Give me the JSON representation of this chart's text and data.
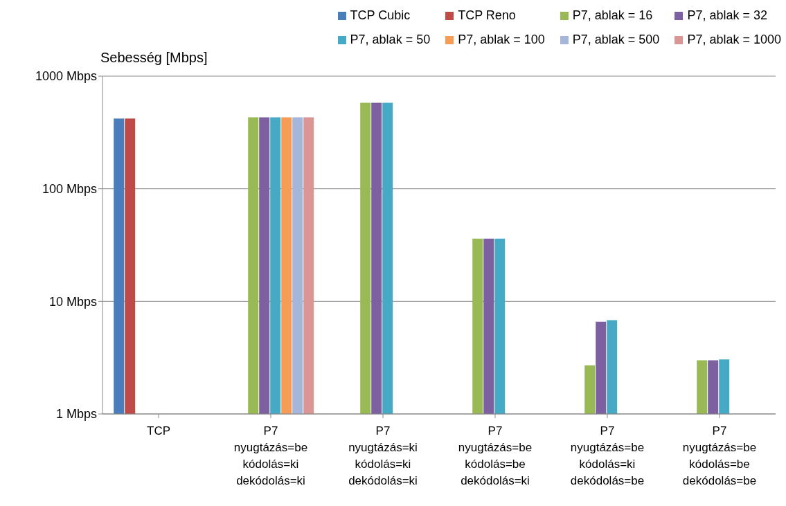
{
  "chart_data": {
    "type": "bar",
    "ylabel": "Sebesség [Mbps]",
    "categories": [
      "TCP",
      "P7\nnyugtázás=be\nkódolás=ki\ndekódolás=ki",
      "P7\nnyugtázás=ki\nkódolás=ki\ndekódolás=ki",
      "P7\nnyugtázás=be\nkódolás=be\ndekódolás=ki",
      "P7\nnyugtázás=be\nkódolás=ki\ndekódolás=be",
      "P7\nnyugtázás=be\nkódolás=be\ndekódolás=be"
    ],
    "series": [
      {
        "name": "TCP Cubic",
        "color": "#4a7ebb",
        "values": [
          420,
          null,
          null,
          null,
          null,
          null
        ]
      },
      {
        "name": "TCP Reno",
        "color": "#be4b48",
        "values": [
          420,
          null,
          null,
          null,
          null,
          null
        ]
      },
      {
        "name": "P7, ablak = 16",
        "color": "#98b954",
        "values": [
          null,
          430,
          580,
          36,
          2.7,
          3.0
        ]
      },
      {
        "name": "P7, ablak = 32",
        "color": "#7d60a0",
        "values": [
          null,
          430,
          580,
          36,
          6.6,
          3.0
        ]
      },
      {
        "name": "P7, ablak = 50",
        "color": "#46aac5",
        "values": [
          null,
          430,
          580,
          36,
          6.8,
          3.05
        ]
      },
      {
        "name": "P7, ablak = 100",
        "color": "#f59d56",
        "values": [
          null,
          430,
          null,
          null,
          null,
          null
        ]
      },
      {
        "name": "P7, ablak = 500",
        "color": "#a5b6da",
        "values": [
          null,
          430,
          null,
          null,
          null,
          null
        ]
      },
      {
        "name": "P7, ablak = 1000",
        "color": "#d99694",
        "values": [
          null,
          430,
          null,
          null,
          null,
          null
        ]
      }
    ],
    "log": true,
    "ylim": [
      1,
      1000
    ],
    "yticks": [
      {
        "value": 1,
        "label": "1 Mbps"
      },
      {
        "value": 10,
        "label": "10 Mbps"
      },
      {
        "value": 100,
        "label": "100 Mbps"
      },
      {
        "value": 1000,
        "label": "1000 Mbps"
      }
    ],
    "grid": "y",
    "legend": "top right"
  }
}
